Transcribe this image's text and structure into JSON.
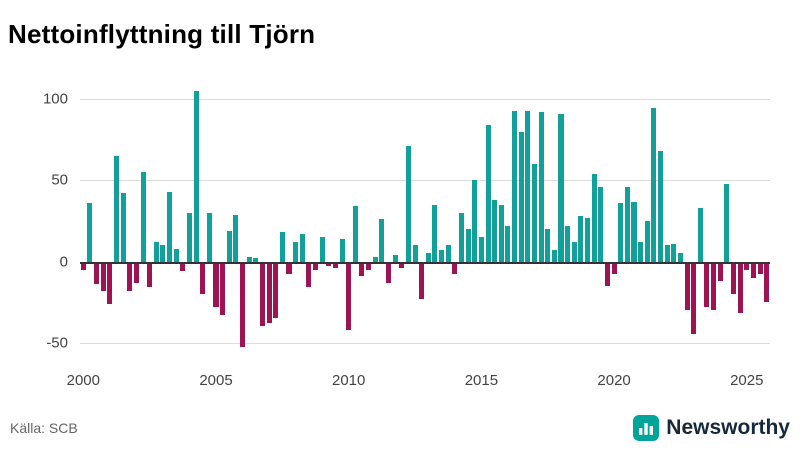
{
  "title": "Nettoinflyttning till Tjörn",
  "source": {
    "text": "Källa: SCB"
  },
  "brand": {
    "name": "Newsworthy",
    "icon": "bar-chart-logo",
    "icon_color": "#00a599",
    "word_color": "#16283c"
  },
  "colors": {
    "positive": "#11a19a",
    "negative": "#a01352",
    "grid": "#dddddd",
    "zero_line": "#333333",
    "axis_text": "#444444"
  },
  "chart_data": {
    "type": "bar",
    "title": "Nettoinflyttning till Tjörn",
    "frequency": "quarterly",
    "start": "2000 Q1",
    "xlabel": "",
    "ylabel": "",
    "ylim": [
      -62,
      112
    ],
    "y_ticks": [
      -50,
      0,
      50,
      100
    ],
    "x_tick_labels": [
      "2000",
      "2005",
      "2010",
      "2015",
      "2020",
      "2025"
    ],
    "x_start_year": 2000,
    "grid": true,
    "legend": "none",
    "values": [
      -5,
      36,
      -14,
      -18,
      -26,
      65,
      42,
      -18,
      -13,
      55,
      -16,
      12,
      10,
      43,
      8,
      -6,
      30,
      105,
      -20,
      30,
      -28,
      -33,
      19,
      29,
      -53,
      3,
      2,
      -40,
      -38,
      -35,
      18,
      -8,
      12,
      17,
      -16,
      -5,
      15,
      -3,
      -4,
      14,
      -42,
      34,
      -9,
      -5,
      3,
      26,
      -13,
      4,
      -4,
      71,
      10,
      -23,
      5,
      35,
      7,
      10,
      -8,
      30,
      20,
      50,
      15,
      84,
      38,
      35,
      22,
      93,
      80,
      93,
      60,
      92,
      20,
      7,
      91,
      22,
      12,
      28,
      27,
      54,
      46,
      -15,
      -8,
      36,
      46,
      37,
      12,
      25,
      95,
      68,
      10,
      11,
      5,
      -30,
      -45,
      33,
      -28,
      -30,
      -12,
      48,
      -20,
      -32,
      -5,
      -10,
      -8,
      -25
    ]
  }
}
